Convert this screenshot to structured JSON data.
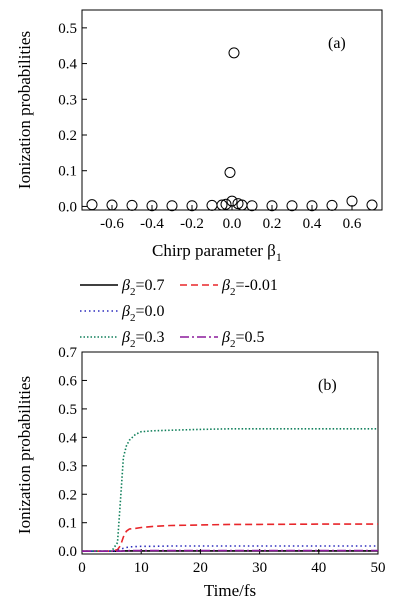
{
  "chart_data": [
    {
      "panel_label": "(a)",
      "type": "scatter",
      "marker": "open-circle",
      "xlabel": "Chirp parameter β",
      "xlabel_subscript": "1",
      "ylabel": "Ionization probabilities",
      "xlim": [
        -0.75,
        0.75
      ],
      "ylim": [
        -0.01,
        0.55
      ],
      "xticks": [
        -0.6,
        -0.4,
        -0.2,
        0.0,
        0.2,
        0.4,
        0.6
      ],
      "xtick_labels": [
        "-0.6",
        "-0.4",
        "-0.2",
        "0.0",
        "0.2",
        "0.4",
        "0.6"
      ],
      "yticks": [
        0.0,
        0.1,
        0.2,
        0.3,
        0.4,
        0.5
      ],
      "ytick_labels": [
        "0.0",
        "0.1",
        "0.2",
        "0.3",
        "0.4",
        "0.5"
      ],
      "points": [
        {
          "x": -0.7,
          "y": 0.005
        },
        {
          "x": -0.6,
          "y": 0.004
        },
        {
          "x": -0.5,
          "y": 0.003
        },
        {
          "x": -0.4,
          "y": 0.002
        },
        {
          "x": -0.3,
          "y": 0.002
        },
        {
          "x": -0.2,
          "y": 0.002
        },
        {
          "x": -0.1,
          "y": 0.003
        },
        {
          "x": -0.05,
          "y": 0.004
        },
        {
          "x": -0.03,
          "y": 0.006
        },
        {
          "x": -0.01,
          "y": 0.095
        },
        {
          "x": 0.0,
          "y": 0.015
        },
        {
          "x": 0.01,
          "y": 0.43
        },
        {
          "x": 0.03,
          "y": 0.008
        },
        {
          "x": 0.05,
          "y": 0.004
        },
        {
          "x": 0.1,
          "y": 0.002
        },
        {
          "x": 0.2,
          "y": 0.002
        },
        {
          "x": 0.3,
          "y": 0.002
        },
        {
          "x": 0.4,
          "y": 0.002
        },
        {
          "x": 0.5,
          "y": 0.003
        },
        {
          "x": 0.6,
          "y": 0.015
        },
        {
          "x": 0.7,
          "y": 0.004
        }
      ]
    },
    {
      "panel_label": "(b)",
      "type": "line",
      "xlabel": "Time/fs",
      "ylabel": "Ionization probabilities",
      "xlim": [
        0,
        50
      ],
      "ylim": [
        -0.01,
        0.7
      ],
      "xticks": [
        0,
        10,
        20,
        30,
        40,
        50
      ],
      "xtick_labels": [
        "0",
        "10",
        "20",
        "30",
        "40",
        "50"
      ],
      "yticks": [
        0.0,
        0.1,
        0.2,
        0.3,
        0.4,
        0.5,
        0.6,
        0.7
      ],
      "ytick_labels": [
        "0.0",
        "0.1",
        "0.2",
        "0.3",
        "0.4",
        "0.5",
        "0.6",
        "0.7"
      ],
      "x": [
        0,
        5,
        6,
        6.5,
        7,
        7.5,
        8,
        9,
        10,
        12,
        15,
        20,
        25,
        30,
        40,
        50
      ],
      "series": [
        {
          "name": "β",
          "name_sub": "2",
          "name_tail": "=0.7",
          "color": "#000000",
          "dash": "",
          "values": [
            0,
            0,
            0,
            0,
            0.001,
            0.001,
            0.001,
            0.001,
            0.001,
            0.001,
            0.001,
            0.001,
            0.001,
            0.001,
            0.001,
            0.001
          ]
        },
        {
          "name": "β",
          "name_sub": "2",
          "name_tail": "=-0.01",
          "color": "#e8262a",
          "dash": "7,4",
          "values": [
            0,
            0,
            0.005,
            0.02,
            0.05,
            0.07,
            0.078,
            0.08,
            0.083,
            0.087,
            0.09,
            0.092,
            0.094,
            0.094,
            0.095,
            0.095
          ]
        },
        {
          "name": "β",
          "name_sub": "2",
          "name_tail": "=0.0",
          "color": "#2b2bbd",
          "dash": "1.5,3",
          "values": [
            0,
            0,
            0.002,
            0.006,
            0.01,
            0.013,
            0.015,
            0.016,
            0.017,
            0.017,
            0.018,
            0.018,
            0.018,
            0.018,
            0.018,
            0.018
          ]
        },
        {
          "name": "β",
          "name_sub": "2",
          "name_tail": "=0.3",
          "color": "#0f7f5a",
          "dash": "1.5,2",
          "values": [
            0,
            0,
            0.03,
            0.18,
            0.33,
            0.37,
            0.39,
            0.41,
            0.42,
            0.423,
            0.425,
            0.428,
            0.43,
            0.43,
            0.43,
            0.43
          ]
        },
        {
          "name": "β",
          "name_sub": "2",
          "name_tail": "=0.5",
          "color": "#8b1a9b",
          "dash": "9,3,2,3",
          "values": [
            0,
            0,
            0,
            0,
            0.001,
            0.001,
            0.002,
            0.002,
            0.002,
            0.002,
            0.002,
            0.002,
            0.002,
            0.002,
            0.002,
            0.002
          ]
        }
      ]
    }
  ]
}
